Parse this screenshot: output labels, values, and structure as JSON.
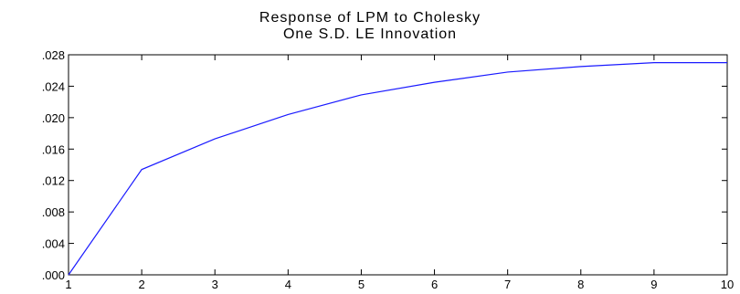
{
  "chart_data": {
    "type": "line",
    "title_lines": [
      "Response of LPM to Cholesky",
      "One S.D. LE Innovation"
    ],
    "x": [
      1,
      2,
      3,
      4,
      5,
      6,
      7,
      8,
      9,
      10
    ],
    "series": [
      {
        "values": [
          0.0,
          0.0134,
          0.0173,
          0.0204,
          0.0229,
          0.0245,
          0.0258,
          0.0265,
          0.027,
          0.027
        ],
        "color": "#1a1aff"
      }
    ],
    "xlim": [
      1,
      10
    ],
    "ylim": [
      0.0,
      0.028
    ],
    "x_tick_labels": [
      "1",
      "2",
      "3",
      "4",
      "5",
      "6",
      "7",
      "8",
      "9",
      "10"
    ],
    "y_tick_values": [
      0.0,
      0.004,
      0.008,
      0.012,
      0.016,
      0.02,
      0.024,
      0.028
    ],
    "y_tick_labels": [
      ".000",
      ".004",
      ".008",
      ".012",
      ".016",
      ".020",
      ".024",
      ".028"
    ],
    "grid": false,
    "legend": "none"
  }
}
